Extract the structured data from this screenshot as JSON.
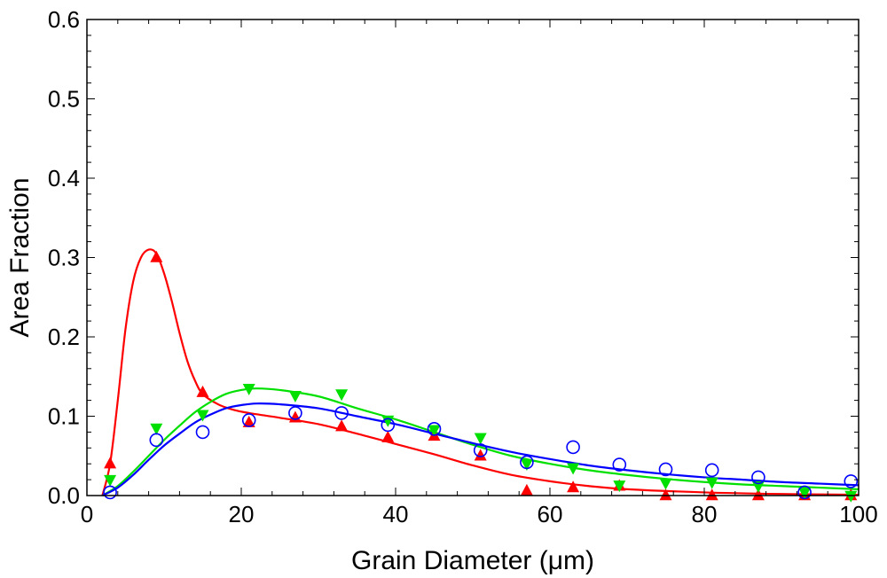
{
  "chart_data": {
    "type": "scatter",
    "title": "",
    "xlabel": "Grain Diameter (μm)",
    "ylabel": "Area Fraction",
    "xlim": [
      0,
      100
    ],
    "ylim": [
      0,
      0.6
    ],
    "xticks": [
      0,
      20,
      40,
      60,
      80,
      100
    ],
    "yticks": [
      0.0,
      0.1,
      0.2,
      0.3,
      0.4,
      0.5,
      0.6
    ],
    "xtick_labels": [
      "0",
      "20",
      "40",
      "60",
      "80",
      "100"
    ],
    "ytick_labels": [
      "0.0",
      "0.1",
      "0.2",
      "0.3",
      "0.4",
      "0.5",
      "0.6"
    ],
    "grid": false,
    "legend": "none",
    "series": [
      {
        "marker": "triangle-up",
        "color": "#ff0000",
        "points": {
          "x": [
            3,
            9,
            15,
            21,
            27,
            33,
            39,
            45,
            51,
            57,
            63,
            69,
            75,
            81,
            87,
            93,
            99
          ],
          "y": [
            0.04,
            0.3,
            0.13,
            0.092,
            0.098,
            0.087,
            0.073,
            0.075,
            0.05,
            0.006,
            0.01,
            0.012,
            0.0,
            0.0,
            0.0,
            0.0,
            0.0
          ]
        },
        "fit": {
          "x": [
            2,
            3,
            4,
            5,
            6,
            7,
            8,
            9,
            10,
            11,
            12,
            13,
            14,
            15,
            17,
            19,
            21,
            25,
            30,
            35,
            40,
            45,
            50,
            55,
            60,
            65,
            70,
            80,
            90,
            100
          ],
          "y": [
            0.0,
            0.04,
            0.12,
            0.21,
            0.27,
            0.3,
            0.31,
            0.305,
            0.28,
            0.245,
            0.205,
            0.17,
            0.145,
            0.128,
            0.115,
            0.108,
            0.104,
            0.098,
            0.09,
            0.078,
            0.065,
            0.052,
            0.038,
            0.026,
            0.018,
            0.012,
            0.008,
            0.004,
            0.002,
            0.001
          ]
        }
      },
      {
        "marker": "triangle-down",
        "color": "#00e000",
        "points": {
          "x": [
            3,
            9,
            15,
            21,
            27,
            33,
            39,
            45,
            51,
            57,
            63,
            69,
            75,
            81,
            87,
            93,
            99
          ],
          "y": [
            0.02,
            0.085,
            0.102,
            0.135,
            0.126,
            0.128,
            0.095,
            0.083,
            0.073,
            0.04,
            0.035,
            0.013,
            0.016,
            0.017,
            0.012,
            0.004,
            0.0
          ]
        },
        "fit": {
          "x": [
            2,
            4,
            6,
            8,
            10,
            12,
            14,
            16,
            18,
            20,
            22,
            25,
            30,
            35,
            40,
            45,
            50,
            55,
            60,
            65,
            70,
            75,
            80,
            85,
            90,
            95,
            100
          ],
          "y": [
            0.0,
            0.012,
            0.03,
            0.05,
            0.07,
            0.088,
            0.105,
            0.118,
            0.128,
            0.133,
            0.135,
            0.133,
            0.125,
            0.11,
            0.096,
            0.08,
            0.064,
            0.05,
            0.04,
            0.032,
            0.026,
            0.021,
            0.017,
            0.014,
            0.012,
            0.01,
            0.008
          ]
        }
      },
      {
        "marker": "circle-open",
        "color": "#0000ff",
        "points": {
          "x": [
            3,
            9,
            15,
            21,
            27,
            33,
            39,
            45,
            51,
            57,
            63,
            69,
            75,
            81,
            87,
            93,
            99
          ],
          "y": [
            0.004,
            0.07,
            0.08,
            0.095,
            0.104,
            0.104,
            0.089,
            0.084,
            0.057,
            0.042,
            0.061,
            0.039,
            0.033,
            0.032,
            0.023,
            0.004,
            0.018
          ]
        },
        "fit": {
          "x": [
            2,
            4,
            6,
            8,
            10,
            12,
            14,
            16,
            18,
            20,
            22,
            25,
            30,
            35,
            40,
            45,
            50,
            55,
            60,
            65,
            70,
            75,
            80,
            85,
            90,
            95,
            100
          ],
          "y": [
            0.0,
            0.01,
            0.026,
            0.045,
            0.063,
            0.078,
            0.092,
            0.102,
            0.11,
            0.114,
            0.116,
            0.115,
            0.11,
            0.1,
            0.09,
            0.078,
            0.066,
            0.055,
            0.046,
            0.038,
            0.032,
            0.027,
            0.023,
            0.02,
            0.017,
            0.015,
            0.013
          ]
        }
      }
    ]
  }
}
